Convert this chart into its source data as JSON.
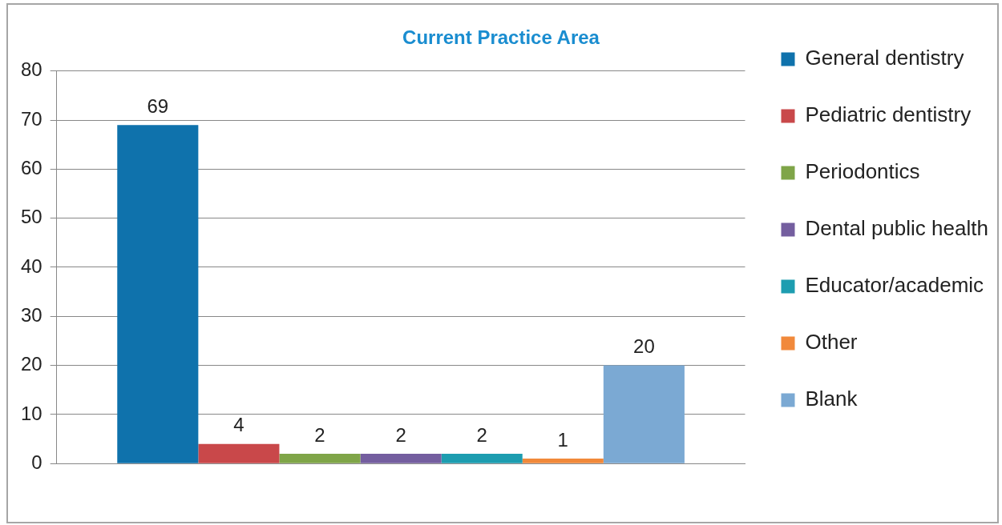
{
  "chart_data": {
    "type": "bar",
    "title": "Current Practice Area",
    "categories": [
      null
    ],
    "series": [
      {
        "name": "General dentistry",
        "color": "#0f72ac",
        "values": [
          69
        ]
      },
      {
        "name": "Pediatric dentistry",
        "color": "#c9484a",
        "values": [
          4
        ]
      },
      {
        "name": "Periodontics",
        "color": "#7fa548",
        "values": [
          2
        ]
      },
      {
        "name": "Dental public health",
        "color": "#745e9f",
        "values": [
          2
        ]
      },
      {
        "name": "Educator/academic",
        "color": "#1d9db0",
        "values": [
          2
        ]
      },
      {
        "name": "Other",
        "color": "#f1893b",
        "values": [
          1
        ]
      },
      {
        "name": "Blank",
        "color": "#7ba9d3",
        "values": [
          20
        ]
      }
    ],
    "ylim": [
      0,
      80
    ],
    "yticks": [
      0,
      10,
      20,
      30,
      40,
      50,
      60,
      70,
      80
    ],
    "grid": "y",
    "legend": "right",
    "data_labels": true
  }
}
